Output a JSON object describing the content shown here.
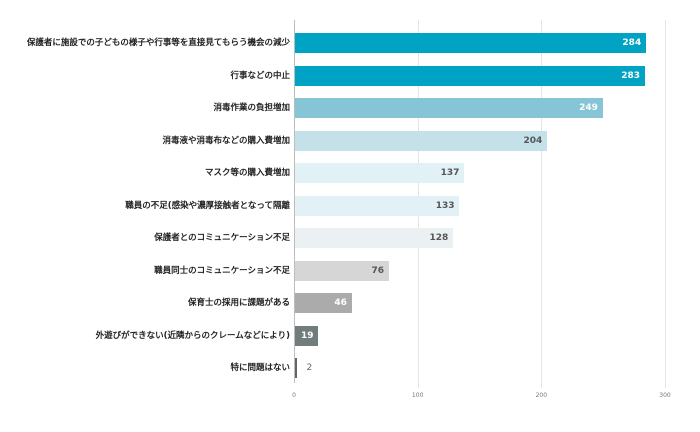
{
  "chart_data": {
    "type": "bar",
    "orientation": "horizontal",
    "title": "",
    "xlabel": "",
    "ylabel": "",
    "xlim": [
      0,
      300
    ],
    "x_ticks": [
      0,
      100,
      200,
      300
    ],
    "grid": true,
    "legend": null,
    "categories": [
      "保護者に施設での子どもの様子や行事等を直接見てもらう機会の減少",
      "行事などの中止",
      "消毒作業の負担増加",
      "消毒液や消毒布などの購入費増加",
      "マスク等の購入費増加",
      "職員の不足(感染や濃厚接触者となって隔離",
      "保護者とのコミュニケーション不足",
      "職員同士のコミュニケーション不足",
      "保育士の採用に課題がある",
      "外遊びができない(近隣からのクレームなどにより)",
      "特に問題はない"
    ],
    "values": [
      284,
      283,
      249,
      204,
      137,
      133,
      128,
      76,
      46,
      19,
      2
    ],
    "bar_colors": [
      "#00a3c4",
      "#00a3c4",
      "#86c5d6",
      "#c4e1ea",
      "#e2f1f5",
      "#e2f1f5",
      "#ebf0f2",
      "#d6d6d6",
      "#ababab",
      "#717c7d",
      "#5f6667"
    ],
    "value_label_colors": [
      "#ffffff",
      "#ffffff",
      "#ffffff",
      "#555555",
      "#555555",
      "#555555",
      "#555555",
      "#555555",
      "#ffffff",
      "#ffffff",
      "#666666"
    ]
  }
}
